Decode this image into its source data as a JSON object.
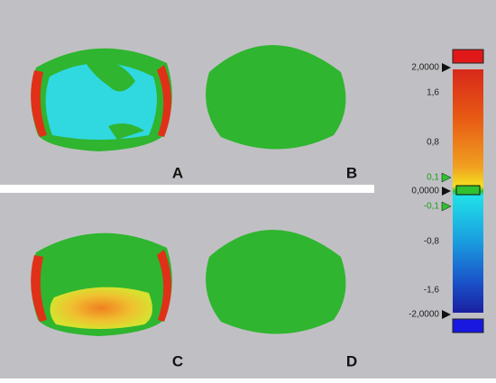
{
  "panels": [
    {
      "label": "A"
    },
    {
      "label": "B"
    },
    {
      "label": "C"
    },
    {
      "label": "D"
    }
  ],
  "scale": {
    "labels": [
      {
        "text": "2,0000"
      },
      {
        "text": "1,6"
      },
      {
        "text": "0,8"
      },
      {
        "text": "0,1"
      },
      {
        "text": "0,0000"
      },
      {
        "text": "-0,1"
      },
      {
        "text": "-0,8"
      },
      {
        "text": "-1,6"
      },
      {
        "text": "-2,0000"
      }
    ]
  }
}
